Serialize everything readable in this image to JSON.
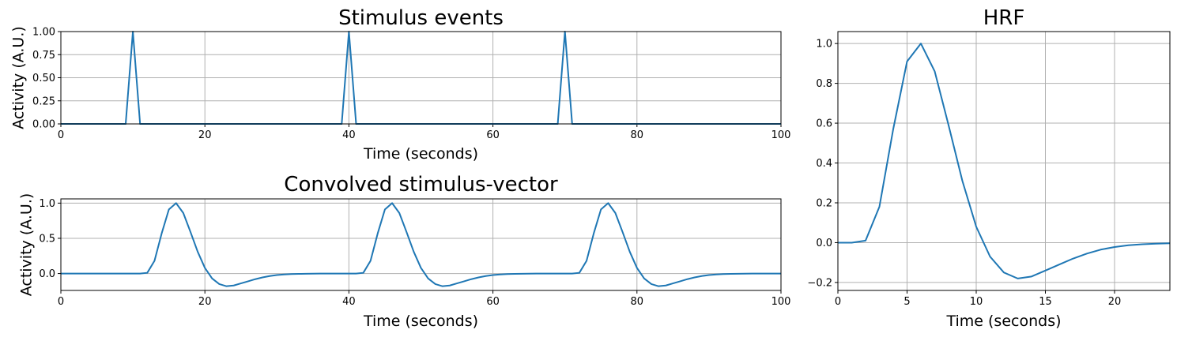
{
  "chart_data": [
    {
      "id": "stim",
      "type": "line",
      "title": "Stimulus events",
      "xlabel": "Time (seconds)",
      "ylabel": "Activity (A.U.)",
      "xlim": [
        0,
        100
      ],
      "ylim": [
        0,
        1
      ],
      "xticks": [
        0,
        20,
        40,
        60,
        80,
        100
      ],
      "yticks": [
        0,
        0.25,
        0.5,
        0.75,
        1.0
      ],
      "ytick_labels": [
        "0.00",
        "0.25",
        "0.50",
        "0.75",
        "1.00"
      ],
      "grid": true,
      "series": [
        {
          "color": "#1f77b4",
          "x": [
            0,
            9,
            10,
            11,
            39,
            40,
            41,
            69,
            70,
            71,
            100
          ],
          "y": [
            0,
            0,
            1,
            0,
            0,
            1,
            0,
            0,
            1,
            0,
            0
          ]
        }
      ]
    },
    {
      "id": "conv",
      "type": "line",
      "title": "Convolved stimulus-vector",
      "xlabel": "Time (seconds)",
      "ylabel": "Activity (A.U.)",
      "xlim": [
        0,
        100
      ],
      "ylim": [
        -0.24,
        1.06
      ],
      "xticks": [
        0,
        20,
        40,
        60,
        80,
        100
      ],
      "yticks": [
        0,
        0.5,
        1.0
      ],
      "ytick_labels": [
        "0.0",
        "0.5",
        "1.0"
      ],
      "grid": true,
      "series": [
        {
          "color": "#1f77b4",
          "x": [
            0,
            1,
            2,
            3,
            4,
            5,
            6,
            7,
            8,
            9,
            10,
            11,
            12,
            13,
            14,
            15,
            16,
            17,
            18,
            19,
            20,
            21,
            22,
            23,
            24,
            25,
            26,
            27,
            28,
            29,
            30,
            31,
            32,
            33,
            34,
            35,
            36,
            37,
            38,
            39,
            40,
            41,
            42,
            43,
            44,
            45,
            46,
            47,
            48,
            49,
            50,
            51,
            52,
            53,
            54,
            55,
            56,
            57,
            58,
            59,
            60,
            61,
            62,
            63,
            64,
            65,
            66,
            67,
            68,
            69,
            70,
            71,
            72,
            73,
            74,
            75,
            76,
            77,
            78,
            79,
            80,
            81,
            82,
            83,
            84,
            85,
            86,
            87,
            88,
            89,
            90,
            91,
            92,
            93,
            94,
            95,
            96,
            97,
            98,
            99,
            100
          ],
          "y": [
            0,
            0,
            0,
            0,
            0,
            0,
            0,
            0,
            0,
            0,
            0,
            0,
            0.01,
            0.18,
            0.57,
            0.91,
            1.0,
            0.86,
            0.59,
            0.31,
            0.08,
            -0.07,
            -0.15,
            -0.18,
            -0.17,
            -0.14,
            -0.11,
            -0.08,
            -0.055,
            -0.035,
            -0.022,
            -0.013,
            -0.008,
            -0.005,
            -0.003,
            -0.002,
            -0.001,
            0,
            0,
            0,
            0,
            0,
            0.01,
            0.18,
            0.57,
            0.91,
            1.0,
            0.86,
            0.59,
            0.31,
            0.08,
            -0.07,
            -0.15,
            -0.18,
            -0.17,
            -0.14,
            -0.11,
            -0.08,
            -0.055,
            -0.035,
            -0.022,
            -0.013,
            -0.008,
            -0.005,
            -0.003,
            -0.002,
            -0.001,
            0,
            0,
            0,
            0,
            0,
            0.01,
            0.18,
            0.57,
            0.91,
            1.0,
            0.86,
            0.59,
            0.31,
            0.08,
            -0.07,
            -0.15,
            -0.18,
            -0.17,
            -0.14,
            -0.11,
            -0.08,
            -0.055,
            -0.035,
            -0.022,
            -0.013,
            -0.008,
            -0.005,
            -0.003,
            -0.002,
            -0.001,
            0,
            0,
            0,
            0
          ]
        }
      ]
    },
    {
      "id": "hrf",
      "type": "line",
      "title": "HRF",
      "xlabel": "Time (seconds)",
      "ylabel": "",
      "xlim": [
        0,
        24
      ],
      "ylim": [
        -0.24,
        1.06
      ],
      "xticks": [
        0,
        5,
        10,
        15,
        20
      ],
      "yticks": [
        -0.2,
        0,
        0.2,
        0.4,
        0.6,
        0.8,
        1.0
      ],
      "ytick_labels": [
        "−0.2",
        "0.0",
        "0.2",
        "0.4",
        "0.6",
        "0.8",
        "1.0"
      ],
      "grid": true,
      "series": [
        {
          "color": "#1f77b4",
          "x": [
            0,
            1,
            2,
            3,
            4,
            5,
            6,
            7,
            8,
            9,
            10,
            11,
            12,
            13,
            14,
            15,
            16,
            17,
            18,
            19,
            20,
            21,
            22,
            23,
            24
          ],
          "y": [
            0,
            0,
            0.01,
            0.18,
            0.57,
            0.91,
            1.0,
            0.86,
            0.59,
            0.31,
            0.08,
            -0.07,
            -0.15,
            -0.18,
            -0.17,
            -0.14,
            -0.11,
            -0.08,
            -0.055,
            -0.035,
            -0.022,
            -0.013,
            -0.008,
            -0.005,
            -0.003
          ]
        }
      ]
    }
  ]
}
